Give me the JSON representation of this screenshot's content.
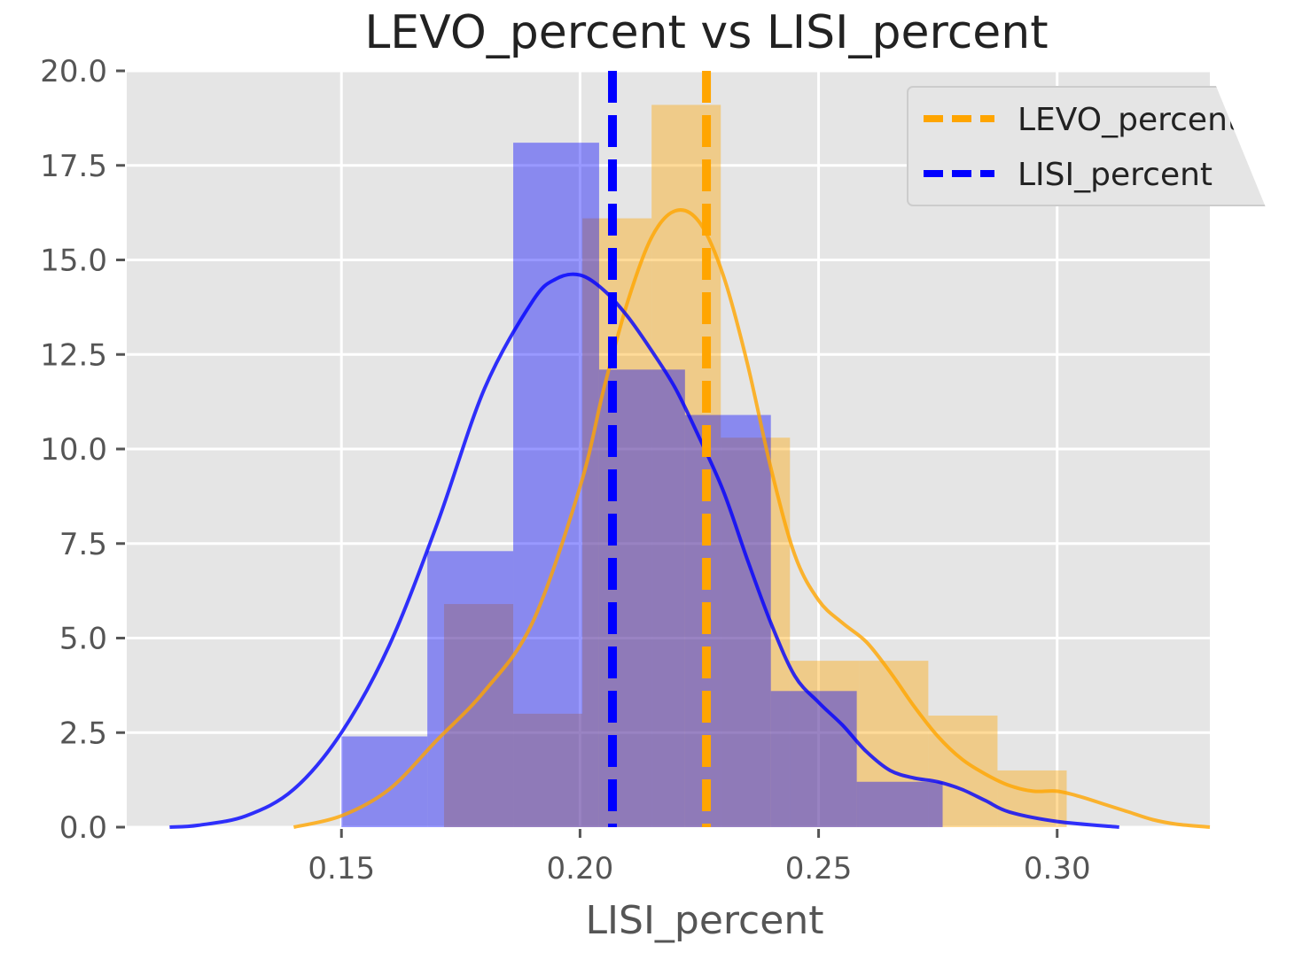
{
  "chart_data": {
    "type": "histogram",
    "title": "LEVO_percent vs LISI_percent",
    "xlabel": "LISI_percent",
    "ylabel": "",
    "xlim": [
      0.105,
      0.332
    ],
    "ylim": [
      0,
      20
    ],
    "xticks": [
      "0.15",
      "0.20",
      "0.25",
      "0.30"
    ],
    "yticks": [
      "0.0",
      "2.5",
      "5.0",
      "7.5",
      "10.0",
      "12.5",
      "15.0",
      "17.5",
      "20.0"
    ],
    "grid": true,
    "legend_position": "top-right",
    "series": [
      {
        "name": "LEVO_percent",
        "color": "#ffa500",
        "mean": 0.2265,
        "bins": [
          {
            "x0": 0.1715,
            "x1": 0.186,
            "height": 5.9
          },
          {
            "x0": 0.186,
            "x1": 0.2005,
            "height": 3.0
          },
          {
            "x0": 0.2005,
            "x1": 0.215,
            "height": 16.1
          },
          {
            "x0": 0.215,
            "x1": 0.2295,
            "height": 19.1
          },
          {
            "x0": 0.2295,
            "x1": 0.244,
            "height": 10.3
          },
          {
            "x0": 0.244,
            "x1": 0.2585,
            "height": 4.4
          },
          {
            "x0": 0.2585,
            "x1": 0.273,
            "height": 4.4
          },
          {
            "x0": 0.273,
            "x1": 0.2875,
            "height": 2.95
          },
          {
            "x0": 0.2875,
            "x1": 0.302,
            "height": 1.5
          }
        ],
        "kde": {
          "x": [
            0.14,
            0.15,
            0.16,
            0.17,
            0.18,
            0.19,
            0.2,
            0.205,
            0.21,
            0.215,
            0.22,
            0.225,
            0.23,
            0.235,
            0.24,
            0.245,
            0.25,
            0.255,
            0.26,
            0.265,
            0.27,
            0.275,
            0.28,
            0.285,
            0.29,
            0.295,
            0.3,
            0.305,
            0.31,
            0.315,
            0.32,
            0.325,
            0.332
          ],
          "y": [
            0.0,
            0.3,
            1.0,
            2.3,
            3.6,
            5.4,
            9.0,
            11.6,
            13.9,
            15.6,
            16.3,
            16.0,
            14.6,
            12.3,
            9.5,
            7.2,
            6.0,
            5.4,
            4.9,
            4.1,
            3.2,
            2.4,
            1.8,
            1.4,
            1.1,
            0.95,
            0.95,
            0.8,
            0.6,
            0.4,
            0.2,
            0.08,
            0.0
          ]
        }
      },
      {
        "name": "LISI_percent",
        "color": "#0000ff",
        "mean": 0.2068,
        "bins": [
          {
            "x0": 0.15,
            "x1": 0.168,
            "height": 2.4
          },
          {
            "x0": 0.168,
            "x1": 0.186,
            "height": 7.3
          },
          {
            "x0": 0.186,
            "x1": 0.204,
            "height": 18.1
          },
          {
            "x0": 0.204,
            "x1": 0.222,
            "height": 12.1
          },
          {
            "x0": 0.222,
            "x1": 0.24,
            "height": 10.9
          },
          {
            "x0": 0.24,
            "x1": 0.258,
            "height": 3.6
          },
          {
            "x0": 0.258,
            "x1": 0.276,
            "height": 1.2
          }
        ],
        "kde": {
          "x": [
            0.114,
            0.12,
            0.13,
            0.14,
            0.15,
            0.16,
            0.17,
            0.18,
            0.19,
            0.195,
            0.2,
            0.205,
            0.21,
            0.215,
            0.22,
            0.225,
            0.23,
            0.235,
            0.24,
            0.245,
            0.25,
            0.255,
            0.26,
            0.265,
            0.27,
            0.275,
            0.28,
            0.285,
            0.29,
            0.3,
            0.313
          ],
          "y": [
            0.0,
            0.05,
            0.3,
            1.0,
            2.5,
            4.8,
            8.0,
            11.6,
            13.9,
            14.5,
            14.6,
            14.2,
            13.5,
            12.6,
            11.6,
            10.3,
            8.9,
            7.1,
            5.4,
            4.0,
            3.3,
            2.7,
            2.0,
            1.5,
            1.3,
            1.2,
            1.0,
            0.7,
            0.4,
            0.15,
            0.0
          ]
        }
      }
    ]
  }
}
